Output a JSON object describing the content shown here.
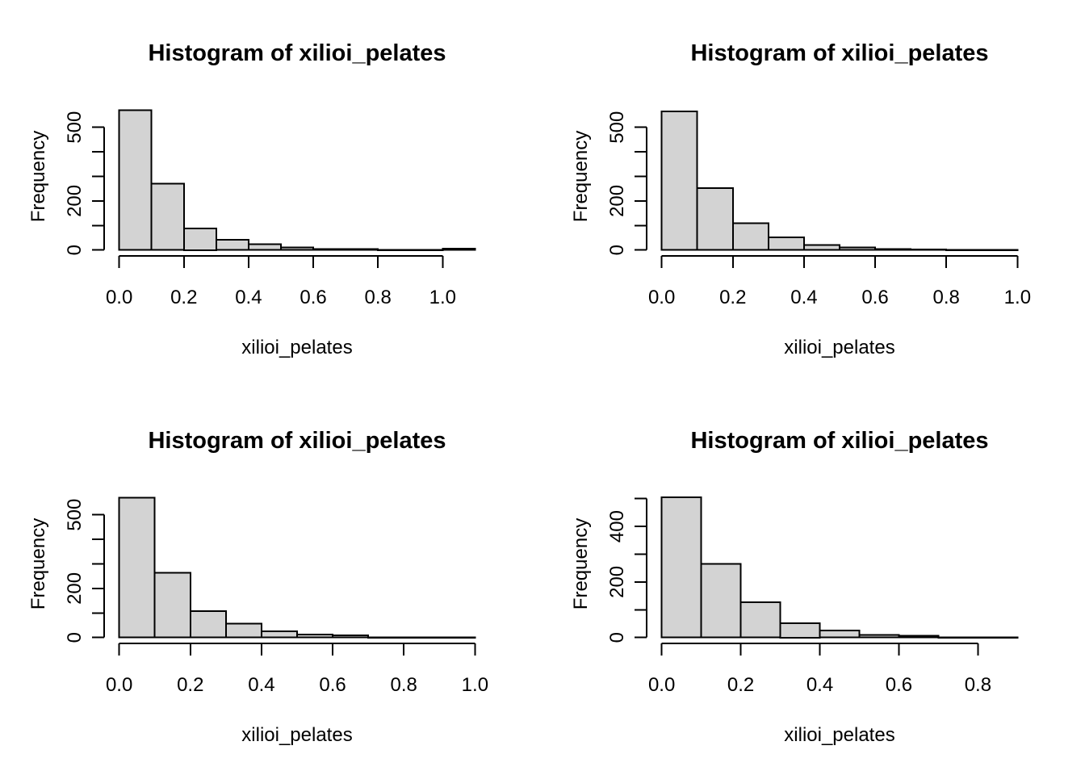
{
  "page": {
    "background": "#ffffff",
    "text_color": "#000000"
  },
  "chart_data": [
    {
      "type": "bar",
      "subtype": "histogram",
      "position": "top-left",
      "title": "Histogram of xilioi_pelates",
      "xlabel": "xilioi_pelates",
      "ylabel": "Frequency",
      "bar_fill": "#d3d3d3",
      "bar_stroke": "#000000",
      "grid": false,
      "legend": null,
      "bin_start": 0,
      "bin_width": 0.1,
      "counts": [
        570,
        270,
        88,
        42,
        23,
        10,
        4,
        4,
        1,
        1,
        6
      ],
      "xlim": [
        0,
        1.1
      ],
      "ylim": [
        0,
        600
      ],
      "x_ticks": [
        0,
        0.2,
        0.4,
        0.6,
        0.8,
        1.0
      ],
      "x_tick_labels": [
        "0.0",
        "0.2",
        "0.4",
        "0.6",
        "0.8",
        "1.0"
      ],
      "y_ticks": [
        0,
        100,
        200,
        300,
        400,
        500
      ],
      "y_tick_labels": [
        "0",
        "",
        "200",
        "",
        "",
        "500"
      ]
    },
    {
      "type": "bar",
      "subtype": "histogram",
      "position": "top-right",
      "title": "Histogram of xilioi_pelates",
      "xlabel": "xilioi_pelates",
      "ylabel": "Frequency",
      "bar_fill": "#d3d3d3",
      "bar_stroke": "#000000",
      "grid": false,
      "legend": null,
      "bin_start": 0,
      "bin_width": 0.1,
      "counts": [
        565,
        253,
        110,
        52,
        21,
        11,
        4,
        3,
        1,
        1
      ],
      "xlim": [
        0,
        1.0
      ],
      "ylim": [
        0,
        600
      ],
      "x_ticks": [
        0,
        0.2,
        0.4,
        0.6,
        0.8,
        1.0
      ],
      "x_tick_labels": [
        "0.0",
        "0.2",
        "0.4",
        "0.6",
        "0.8",
        "1.0"
      ],
      "y_ticks": [
        0,
        100,
        200,
        300,
        400,
        500
      ],
      "y_tick_labels": [
        "0",
        "",
        "200",
        "",
        "",
        "500"
      ]
    },
    {
      "type": "bar",
      "subtype": "histogram",
      "position": "bottom-left",
      "title": "Histogram of xilioi_pelates",
      "xlabel": "xilioi_pelates",
      "ylabel": "Frequency",
      "bar_fill": "#d3d3d3",
      "bar_stroke": "#000000",
      "grid": false,
      "legend": null,
      "bin_start": 0,
      "bin_width": 0.1,
      "counts": [
        570,
        264,
        108,
        56,
        25,
        12,
        9,
        1,
        1,
        1
      ],
      "xlim": [
        0,
        1.0
      ],
      "ylim": [
        0,
        600
      ],
      "x_ticks": [
        0,
        0.2,
        0.4,
        0.6,
        0.8,
        1.0
      ],
      "x_tick_labels": [
        "0.0",
        "0.2",
        "0.4",
        "0.6",
        "0.8",
        "1.0"
      ],
      "y_ticks": [
        0,
        100,
        200,
        300,
        400,
        500
      ],
      "y_tick_labels": [
        "0",
        "",
        "200",
        "",
        "",
        "500"
      ]
    },
    {
      "type": "bar",
      "subtype": "histogram",
      "position": "bottom-right",
      "title": "Histogram of xilioi_pelates",
      "xlabel": "xilioi_pelates",
      "ylabel": "Frequency",
      "bar_fill": "#d3d3d3",
      "bar_stroke": "#000000",
      "grid": false,
      "legend": null,
      "bin_start": 0,
      "bin_width": 0.1,
      "counts": [
        505,
        265,
        127,
        51,
        26,
        9,
        7,
        1,
        1
      ],
      "xlim": [
        0,
        0.9
      ],
      "ylim": [
        0,
        530
      ],
      "x_ticks": [
        0,
        0.2,
        0.4,
        0.6,
        0.8
      ],
      "x_tick_labels": [
        "0.0",
        "0.2",
        "0.4",
        "0.6",
        "0.8"
      ],
      "y_ticks": [
        0,
        100,
        200,
        300,
        400,
        500
      ],
      "y_tick_labels": [
        "0",
        "",
        "200",
        "",
        "400",
        ""
      ]
    }
  ]
}
